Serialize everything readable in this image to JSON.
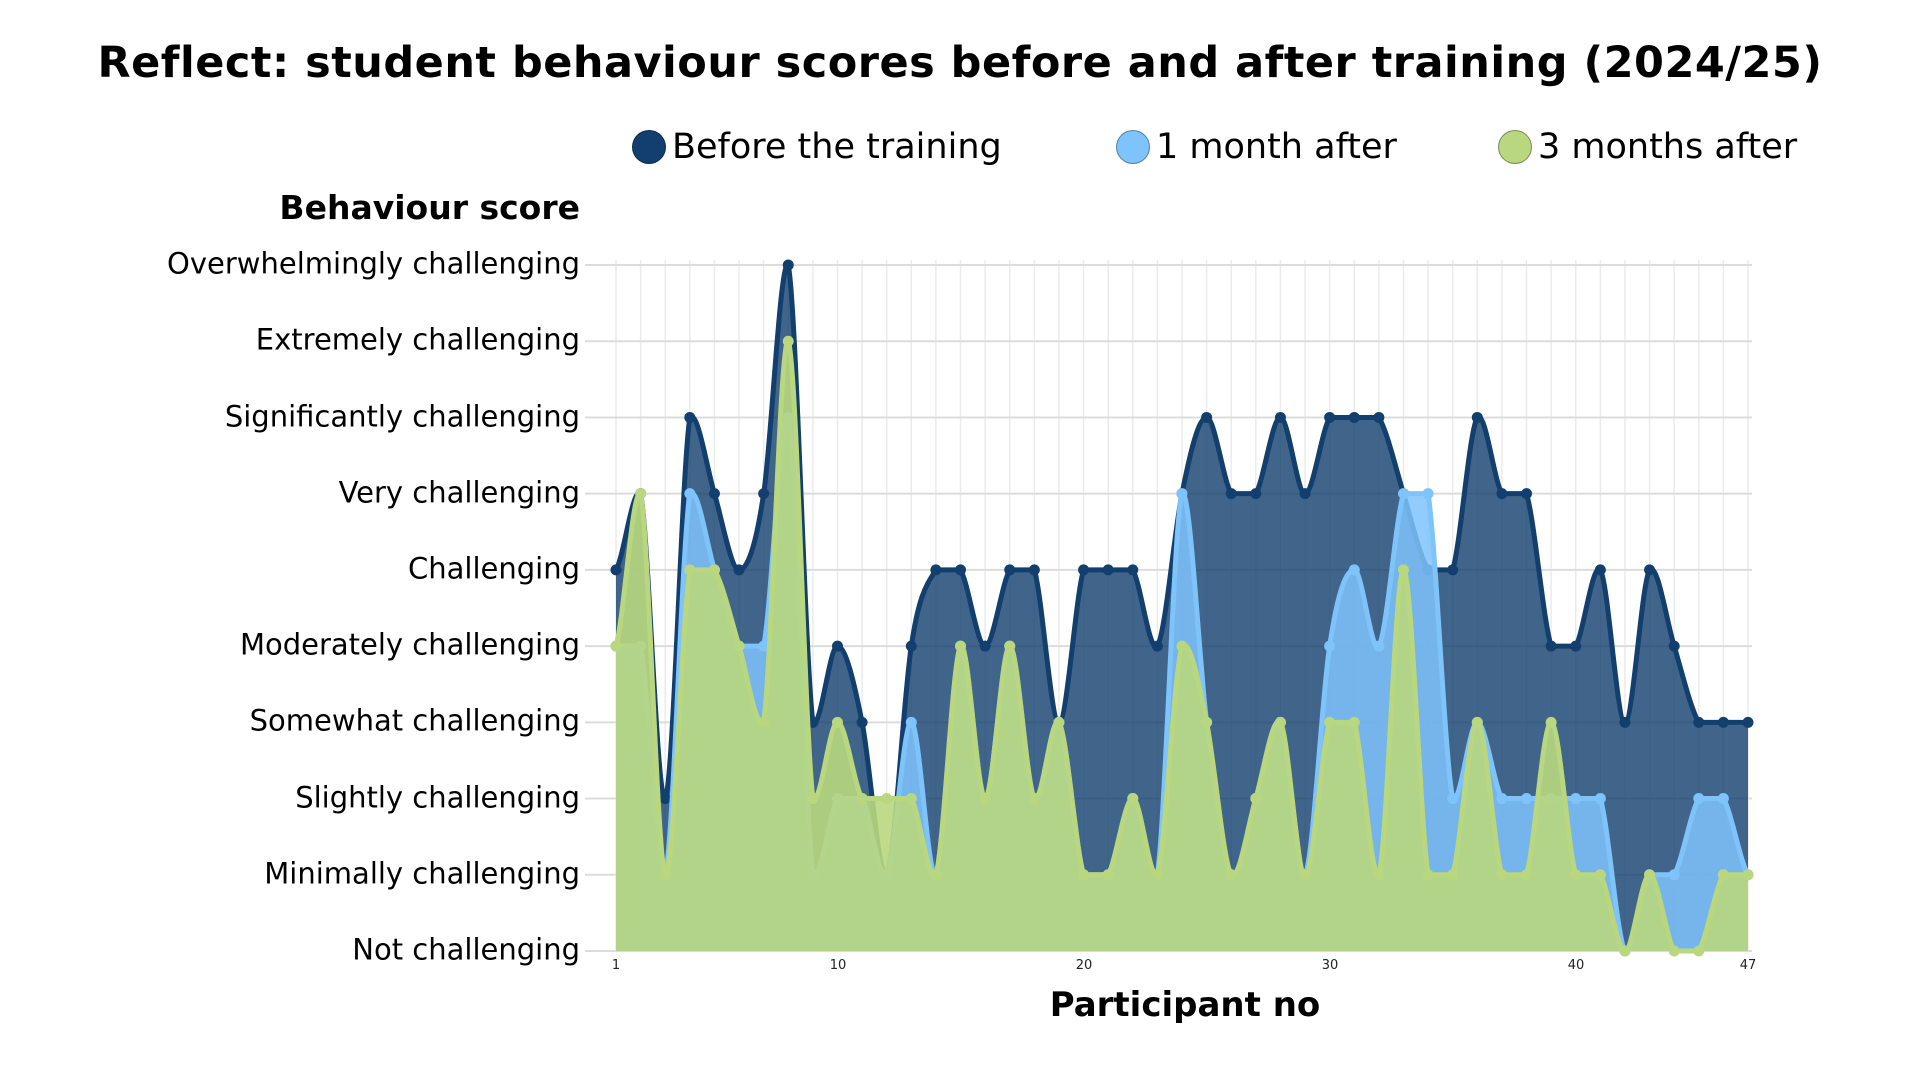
{
  "title": "Reflect: student behaviour scores before and after training (2024/25)",
  "legend": [
    {
      "label": "Before the training",
      "color": "#123f6d"
    },
    {
      "label": "1 month after",
      "color": "#7fc3fb"
    },
    {
      "label": "3 months after",
      "color": "#b8d77e"
    }
  ],
  "y_axis_title": "Behaviour score",
  "x_axis_title": "Participant no",
  "y_levels": [
    "Not challenging",
    "Minimally challenging",
    "Slightly challenging",
    "Somewhat challenging",
    "Moderately challenging",
    "Challenging",
    "Very challenging",
    "Significantly challenging",
    "Extremely challenging",
    "Overwhelmingly challenging"
  ],
  "x_ticks": [
    "1",
    "10",
    "20",
    "30",
    "40",
    "47"
  ],
  "chart_data": {
    "type": "area",
    "title": "Reflect: student behaviour scores before and after training (2024/25)",
    "xlabel": "Participant no",
    "ylabel": "Behaviour score",
    "x": [
      1,
      2,
      3,
      4,
      5,
      6,
      7,
      8,
      9,
      10,
      11,
      12,
      13,
      14,
      15,
      16,
      17,
      18,
      19,
      20,
      21,
      22,
      23,
      24,
      25,
      26,
      27,
      28,
      29,
      30,
      31,
      32,
      33,
      34,
      35,
      36,
      37,
      38,
      39,
      40,
      41,
      42,
      43,
      44,
      45,
      46,
      47
    ],
    "x_ticks": [
      1,
      10,
      20,
      30,
      40,
      47
    ],
    "y_categories": [
      "Not challenging",
      "Minimally challenging",
      "Slightly challenging",
      "Somewhat challenging",
      "Moderately challenging",
      "Challenging",
      "Very challenging",
      "Significantly challenging",
      "Extremely challenging",
      "Overwhelmingly challenging"
    ],
    "ylim": [
      0,
      9
    ],
    "grid": true,
    "legend_position": "top",
    "series": [
      {
        "name": "Before the training",
        "color": "#123f6d",
        "values": [
          5,
          6,
          2,
          7,
          6,
          5,
          6,
          9,
          3,
          4,
          3,
          1,
          4,
          5,
          5,
          4,
          5,
          5,
          3,
          5,
          5,
          5,
          4,
          6,
          7,
          6,
          6,
          7,
          6,
          7,
          7,
          7,
          6,
          5,
          5,
          7,
          6,
          6,
          4,
          4,
          5,
          3,
          5,
          4,
          3,
          3,
          3
        ]
      },
      {
        "name": "1 month after",
        "color": "#7fc3fb",
        "values": [
          4,
          4,
          1,
          6,
          5,
          4,
          4,
          7,
          1,
          2,
          2,
          1,
          3,
          1,
          4,
          2,
          4,
          2,
          3,
          1,
          1,
          2,
          1,
          6,
          3,
          1,
          2,
          3,
          1,
          4,
          5,
          4,
          6,
          6,
          2,
          3,
          2,
          2,
          2,
          2,
          2,
          0,
          1,
          1,
          2,
          2,
          1
        ]
      },
      {
        "name": "3 months after",
        "color": "#b8d77e",
        "values": [
          4,
          6,
          1,
          5,
          5,
          4,
          3,
          8,
          2,
          3,
          2,
          2,
          2,
          1,
          4,
          2,
          4,
          2,
          3,
          1,
          1,
          2,
          1,
          4,
          3,
          1,
          2,
          3,
          1,
          3,
          3,
          1,
          5,
          1,
          1,
          3,
          1,
          1,
          3,
          1,
          1,
          0,
          1,
          0,
          0,
          1,
          1
        ]
      }
    ]
  }
}
